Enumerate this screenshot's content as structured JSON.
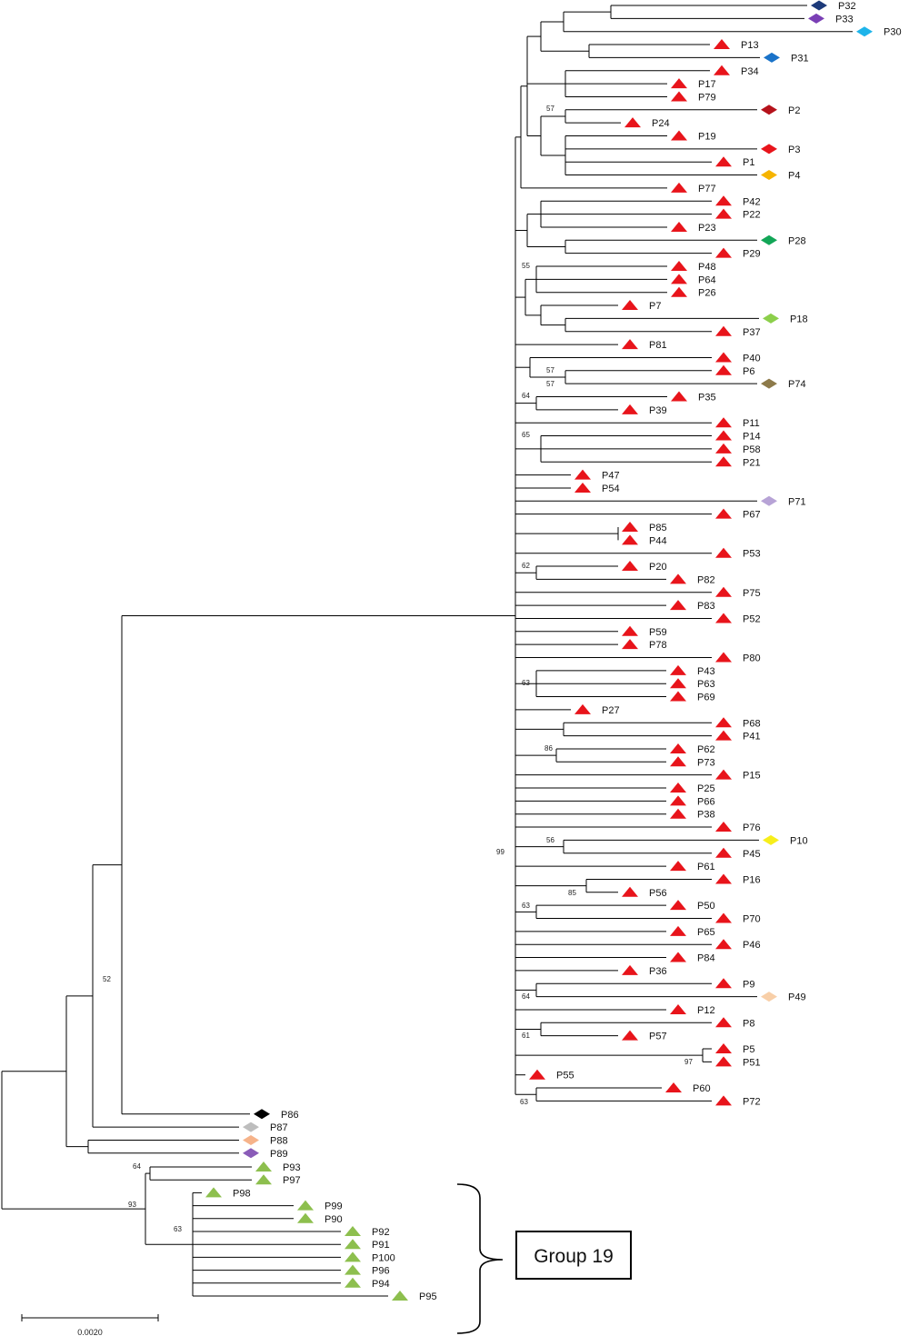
{
  "colors": {
    "red": "#e8141b",
    "green": "#8dbf4e",
    "line": "#000000"
  },
  "diagram": {
    "type": "phylogenetic-tree",
    "group_label": "Group 19",
    "scale_label": "0.0020",
    "bootstrap": [
      "57",
      "57",
      "55",
      "57",
      "64",
      "65",
      "62",
      "63",
      "86",
      "99",
      "56",
      "85",
      "63",
      "64",
      "61",
      "97",
      "63",
      "52",
      "64",
      "93",
      "63"
    ],
    "taxa": [
      {
        "name": "P32",
        "marker": "diamond",
        "color": "#1d3a7a"
      },
      {
        "name": "P33",
        "marker": "diamond",
        "color": "#7a3fb5"
      },
      {
        "name": "P30",
        "marker": "diamond",
        "color": "#1eb4ea"
      },
      {
        "name": "P13",
        "marker": "triangle",
        "color": "#e8141b"
      },
      {
        "name": "P31",
        "marker": "diamond",
        "color": "#1a73c9"
      },
      {
        "name": "P34",
        "marker": "triangle",
        "color": "#e8141b"
      },
      {
        "name": "P17",
        "marker": "triangle",
        "color": "#e8141b"
      },
      {
        "name": "P79",
        "marker": "triangle",
        "color": "#e8141b"
      },
      {
        "name": "P2",
        "marker": "diamond",
        "color": "#b5121b"
      },
      {
        "name": "P24",
        "marker": "triangle",
        "color": "#e8141b"
      },
      {
        "name": "P19",
        "marker": "triangle",
        "color": "#e8141b"
      },
      {
        "name": "P3",
        "marker": "diamond",
        "color": "#e8141b"
      },
      {
        "name": "P1",
        "marker": "triangle",
        "color": "#e8141b"
      },
      {
        "name": "P4",
        "marker": "diamond",
        "color": "#f6b400"
      },
      {
        "name": "P77",
        "marker": "triangle",
        "color": "#e8141b"
      },
      {
        "name": "P42",
        "marker": "triangle",
        "color": "#e8141b"
      },
      {
        "name": "P22",
        "marker": "triangle",
        "color": "#e8141b"
      },
      {
        "name": "P23",
        "marker": "triangle",
        "color": "#e8141b"
      },
      {
        "name": "P28",
        "marker": "diamond",
        "color": "#12a657"
      },
      {
        "name": "P29",
        "marker": "triangle",
        "color": "#e8141b"
      },
      {
        "name": "P48",
        "marker": "triangle",
        "color": "#e8141b"
      },
      {
        "name": "P64",
        "marker": "triangle",
        "color": "#e8141b"
      },
      {
        "name": "P26",
        "marker": "triangle",
        "color": "#e8141b"
      },
      {
        "name": "P7",
        "marker": "triangle",
        "color": "#e8141b"
      },
      {
        "name": "P18",
        "marker": "diamond",
        "color": "#8ccf4b"
      },
      {
        "name": "P37",
        "marker": "triangle",
        "color": "#e8141b"
      },
      {
        "name": "P81",
        "marker": "triangle",
        "color": "#e8141b"
      },
      {
        "name": "P40",
        "marker": "triangle",
        "color": "#e8141b"
      },
      {
        "name": "P6",
        "marker": "triangle",
        "color": "#e8141b"
      },
      {
        "name": "P74",
        "marker": "diamond",
        "color": "#8d7a4a"
      },
      {
        "name": "P35",
        "marker": "triangle",
        "color": "#e8141b"
      },
      {
        "name": "P39",
        "marker": "triangle",
        "color": "#e8141b"
      },
      {
        "name": "P11",
        "marker": "triangle",
        "color": "#e8141b"
      },
      {
        "name": "P14",
        "marker": "triangle",
        "color": "#e8141b"
      },
      {
        "name": "P58",
        "marker": "triangle",
        "color": "#e8141b"
      },
      {
        "name": "P21",
        "marker": "triangle",
        "color": "#e8141b"
      },
      {
        "name": "P47",
        "marker": "triangle",
        "color": "#e8141b"
      },
      {
        "name": "P54",
        "marker": "triangle",
        "color": "#e8141b"
      },
      {
        "name": "P71",
        "marker": "diamond",
        "color": "#b7a3d6"
      },
      {
        "name": "P67",
        "marker": "triangle",
        "color": "#e8141b"
      },
      {
        "name": "P85",
        "marker": "triangle",
        "color": "#e8141b"
      },
      {
        "name": "P44",
        "marker": "triangle",
        "color": "#e8141b"
      },
      {
        "name": "P53",
        "marker": "triangle",
        "color": "#e8141b"
      },
      {
        "name": "P20",
        "marker": "triangle",
        "color": "#e8141b"
      },
      {
        "name": "P82",
        "marker": "triangle",
        "color": "#e8141b"
      },
      {
        "name": "P75",
        "marker": "triangle",
        "color": "#e8141b"
      },
      {
        "name": "P83",
        "marker": "triangle",
        "color": "#e8141b"
      },
      {
        "name": "P52",
        "marker": "triangle",
        "color": "#e8141b"
      },
      {
        "name": "P59",
        "marker": "triangle",
        "color": "#e8141b"
      },
      {
        "name": "P78",
        "marker": "triangle",
        "color": "#e8141b"
      },
      {
        "name": "P80",
        "marker": "triangle",
        "color": "#e8141b"
      },
      {
        "name": "P43",
        "marker": "triangle",
        "color": "#e8141b"
      },
      {
        "name": "P63",
        "marker": "triangle",
        "color": "#e8141b"
      },
      {
        "name": "P69",
        "marker": "triangle",
        "color": "#e8141b"
      },
      {
        "name": "P27",
        "marker": "triangle",
        "color": "#e8141b"
      },
      {
        "name": "P68",
        "marker": "triangle",
        "color": "#e8141b"
      },
      {
        "name": "P41",
        "marker": "triangle",
        "color": "#e8141b"
      },
      {
        "name": "P62",
        "marker": "triangle",
        "color": "#e8141b"
      },
      {
        "name": "P73",
        "marker": "triangle",
        "color": "#e8141b"
      },
      {
        "name": "P15",
        "marker": "triangle",
        "color": "#e8141b"
      },
      {
        "name": "P25",
        "marker": "triangle",
        "color": "#e8141b"
      },
      {
        "name": "P66",
        "marker": "triangle",
        "color": "#e8141b"
      },
      {
        "name": "P38",
        "marker": "triangle",
        "color": "#e8141b"
      },
      {
        "name": "P76",
        "marker": "triangle",
        "color": "#e8141b"
      },
      {
        "name": "P10",
        "marker": "diamond",
        "color": "#f7ee1b"
      },
      {
        "name": "P45",
        "marker": "triangle",
        "color": "#e8141b"
      },
      {
        "name": "P61",
        "marker": "triangle",
        "color": "#e8141b"
      },
      {
        "name": "P16",
        "marker": "triangle",
        "color": "#e8141b"
      },
      {
        "name": "P56",
        "marker": "triangle",
        "color": "#e8141b"
      },
      {
        "name": "P50",
        "marker": "triangle",
        "color": "#e8141b"
      },
      {
        "name": "P70",
        "marker": "triangle",
        "color": "#e8141b"
      },
      {
        "name": "P65",
        "marker": "triangle",
        "color": "#e8141b"
      },
      {
        "name": "P46",
        "marker": "triangle",
        "color": "#e8141b"
      },
      {
        "name": "P84",
        "marker": "triangle",
        "color": "#e8141b"
      },
      {
        "name": "P36",
        "marker": "triangle",
        "color": "#e8141b"
      },
      {
        "name": "P9",
        "marker": "triangle",
        "color": "#e8141b"
      },
      {
        "name": "P49",
        "marker": "diamond",
        "color": "#f8cfa8"
      },
      {
        "name": "P12",
        "marker": "triangle",
        "color": "#e8141b"
      },
      {
        "name": "P8",
        "marker": "triangle",
        "color": "#e8141b"
      },
      {
        "name": "P57",
        "marker": "triangle",
        "color": "#e8141b"
      },
      {
        "name": "P5",
        "marker": "triangle",
        "color": "#e8141b"
      },
      {
        "name": "P51",
        "marker": "triangle",
        "color": "#e8141b"
      },
      {
        "name": "P55",
        "marker": "triangle",
        "color": "#e8141b"
      },
      {
        "name": "P60",
        "marker": "triangle",
        "color": "#e8141b"
      },
      {
        "name": "P72",
        "marker": "triangle",
        "color": "#e8141b"
      },
      {
        "name": "P86",
        "marker": "diamond",
        "color": "#000000"
      },
      {
        "name": "P87",
        "marker": "diamond",
        "color": "#bdbdbd"
      },
      {
        "name": "P88",
        "marker": "diamond",
        "color": "#f6b38a"
      },
      {
        "name": "P89",
        "marker": "diamond",
        "color": "#8a5cb8"
      },
      {
        "name": "P93",
        "marker": "triangle",
        "color": "#8dbf4e"
      },
      {
        "name": "P97",
        "marker": "triangle",
        "color": "#8dbf4e"
      },
      {
        "name": "P98",
        "marker": "triangle",
        "color": "#8dbf4e"
      },
      {
        "name": "P99",
        "marker": "triangle",
        "color": "#8dbf4e"
      },
      {
        "name": "P90",
        "marker": "triangle",
        "color": "#8dbf4e"
      },
      {
        "name": "P92",
        "marker": "triangle",
        "color": "#8dbf4e"
      },
      {
        "name": "P91",
        "marker": "triangle",
        "color": "#8dbf4e"
      },
      {
        "name": "P100",
        "marker": "triangle",
        "color": "#8dbf4e"
      },
      {
        "name": "P96",
        "marker": "triangle",
        "color": "#8dbf4e"
      },
      {
        "name": "P94",
        "marker": "triangle",
        "color": "#8dbf4e"
      },
      {
        "name": "P95",
        "marker": "triangle",
        "color": "#8dbf4e"
      }
    ]
  }
}
